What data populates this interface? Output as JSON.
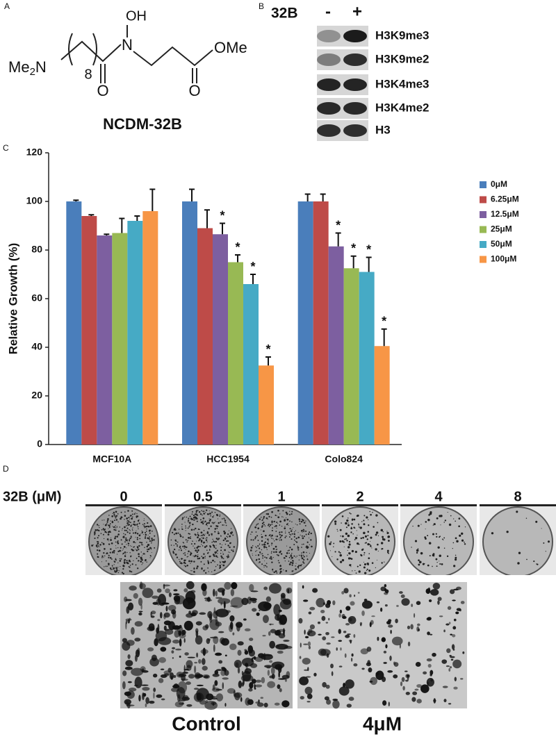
{
  "panel_labels": [
    "A",
    "B",
    "C",
    "D"
  ],
  "structure": {
    "amine": [
      "Me",
      "2",
      "N"
    ],
    "chain_count": "8",
    "hydroxyl": "OH",
    "nitrogen": "N",
    "carbonyl_o1": "O",
    "carbonyl_o2": "O",
    "ester": "OMe",
    "name": "NCDM-32B"
  },
  "western": {
    "treatment": "32B",
    "lanes": [
      "-",
      "+"
    ],
    "rows": [
      "H3K9me3",
      "H3K9me2",
      "H3K4me3",
      "H3K4me2",
      "H3"
    ]
  },
  "chart_data": {
    "type": "bar",
    "ylabel": "Relative Growth (%)",
    "categories": [
      "MCF10A",
      "HCC1954",
      "Colo824"
    ],
    "series": [
      {
        "name": "0μM",
        "color": "#4a7ebb",
        "values": [
          100,
          100,
          100
        ],
        "errors": [
          0.5,
          5,
          3
        ],
        "marks": [
          null,
          null,
          null
        ]
      },
      {
        "name": "6.25μM",
        "color": "#be4b48",
        "values": [
          94,
          89,
          100
        ],
        "errors": [
          0.5,
          7.5,
          3
        ],
        "marks": [
          null,
          null,
          null
        ]
      },
      {
        "name": "12.5μM",
        "color": "#7d5fa0",
        "values": [
          86,
          86.5,
          81.5
        ],
        "errors": [
          0.5,
          4.5,
          5.5
        ],
        "marks": [
          null,
          "*",
          "*"
        ]
      },
      {
        "name": "25μM",
        "color": "#98b954",
        "values": [
          87,
          75,
          72.5
        ],
        "errors": [
          6,
          3,
          5
        ],
        "marks": [
          null,
          "*",
          "*"
        ]
      },
      {
        "name": "50μM",
        "color": "#46aac5",
        "values": [
          92,
          66,
          71
        ],
        "errors": [
          2,
          4,
          6
        ],
        "marks": [
          null,
          "*",
          "*"
        ]
      },
      {
        "name": "100μM",
        "color": "#f79646",
        "values": [
          96,
          32.5,
          40.5
        ],
        "errors": [
          9,
          3.5,
          7
        ],
        "marks": [
          null,
          "*",
          "*"
        ]
      }
    ],
    "ylim": [
      0,
      120
    ],
    "yticks": [
      0,
      20,
      40,
      60,
      80,
      100,
      120
    ],
    "grid": false,
    "legend": "right"
  },
  "colony": {
    "treatment": "32B (μM)",
    "doses": [
      "0",
      "0.5",
      "1",
      "2",
      "4",
      "8"
    ],
    "images": [
      "Control",
      "4μM"
    ]
  }
}
